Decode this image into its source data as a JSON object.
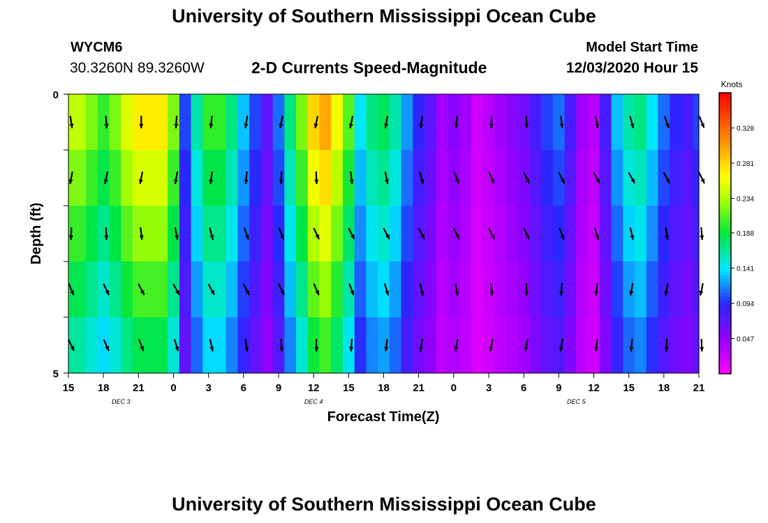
{
  "header": {
    "title": "University of Southern Mississippi Ocean Cube",
    "station_id": "WYCM6",
    "station_coords": "30.3260N 89.3260W",
    "subtitle": "2-D Currents Speed-Magnitude",
    "model_start_label": "Model Start Time",
    "model_start_value": "12/03/2020 Hour 15"
  },
  "footer": {
    "title": "University of Southern Mississippi Ocean Cube"
  },
  "chart_data": {
    "type": "heatmap",
    "title": "2-D Currents Speed-Magnitude",
    "xlabel": "Forecast Time(Z)",
    "ylabel": "Depth (ft)",
    "x_tick_labels": [
      "15",
      "18",
      "21",
      "0",
      "3",
      "6",
      "9",
      "12",
      "15",
      "18",
      "21",
      "0",
      "3",
      "6",
      "9",
      "12",
      "15",
      "18",
      "21"
    ],
    "x_range_hours": [
      0,
      54
    ],
    "date_labels": [
      {
        "label": "DEC 3",
        "hour": 4.5
      },
      {
        "label": "DEC 4",
        "hour": 21
      },
      {
        "label": "DEC 5",
        "hour": 43.5
      }
    ],
    "y_tick_labels": [
      "0",
      "5"
    ],
    "ylim": [
      0,
      5
    ],
    "colorbar": {
      "title": "Knots",
      "ticks": [
        "0.328",
        "0.281",
        "0.234",
        "0.188",
        "0.141",
        "0.094",
        "0.047"
      ],
      "vmin": 0.0,
      "vmax": 0.375
    },
    "depth_levels": 5,
    "speed_knots_by_hour": [
      0.24,
      0.24,
      0.22,
      0.2,
      0.22,
      0.25,
      0.27,
      0.27,
      0.27,
      0.22,
      0.1,
      0.16,
      0.2,
      0.2,
      0.17,
      0.13,
      0.1,
      0.07,
      0.11,
      0.17,
      0.22,
      0.28,
      0.3,
      0.26,
      0.21,
      0.14,
      0.17,
      0.18,
      0.16,
      0.12,
      0.09,
      0.07,
      0.04,
      0.05,
      0.04,
      0.02,
      0.03,
      0.04,
      0.05,
      0.06,
      0.08,
      0.1,
      0.11,
      0.08,
      0.04,
      0.03,
      0.08,
      0.13,
      0.16,
      0.17,
      0.14,
      0.11,
      0.09,
      0.08,
      0.1
    ]
  }
}
